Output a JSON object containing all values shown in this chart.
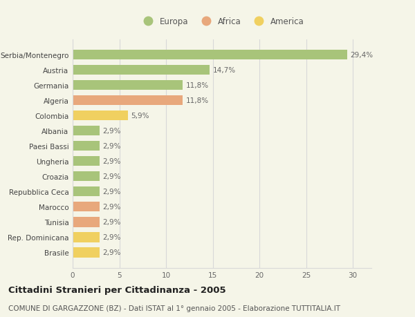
{
  "categories": [
    "Serbia/Montenegro",
    "Austria",
    "Germania",
    "Algeria",
    "Colombia",
    "Albania",
    "Paesi Bassi",
    "Ungheria",
    "Croazia",
    "Repubblica Ceca",
    "Marocco",
    "Tunisia",
    "Rep. Dominicana",
    "Brasile"
  ],
  "values": [
    29.4,
    14.7,
    11.8,
    11.8,
    5.9,
    2.9,
    2.9,
    2.9,
    2.9,
    2.9,
    2.9,
    2.9,
    2.9,
    2.9
  ],
  "labels": [
    "29,4%",
    "14,7%",
    "11,8%",
    "11,8%",
    "5,9%",
    "2,9%",
    "2,9%",
    "2,9%",
    "2,9%",
    "2,9%",
    "2,9%",
    "2,9%",
    "2,9%",
    "2,9%"
  ],
  "colors": [
    "#a8c47a",
    "#a8c47a",
    "#a8c47a",
    "#e8a87c",
    "#f0d060",
    "#a8c47a",
    "#a8c47a",
    "#a8c47a",
    "#a8c47a",
    "#a8c47a",
    "#e8a87c",
    "#e8a87c",
    "#f0d060",
    "#f0d060"
  ],
  "legend": [
    {
      "label": "Europa",
      "color": "#a8c47a"
    },
    {
      "label": "Africa",
      "color": "#e8a87c"
    },
    {
      "label": "America",
      "color": "#f0d060"
    }
  ],
  "title": "Cittadini Stranieri per Cittadinanza - 2005",
  "subtitle": "COMUNE DI GARGAZZONE (BZ) - Dati ISTAT al 1° gennaio 2005 - Elaborazione TUTTITALIA.IT",
  "xlim": [
    0,
    32
  ],
  "xticks": [
    0,
    5,
    10,
    15,
    20,
    25,
    30
  ],
  "background_color": "#f5f5e8",
  "grid_color": "#d8d8d8",
  "bar_label_fontsize": 7.5,
  "tick_fontsize": 7.5,
  "legend_fontsize": 8.5,
  "title_fontsize": 9.5,
  "subtitle_fontsize": 7.5
}
